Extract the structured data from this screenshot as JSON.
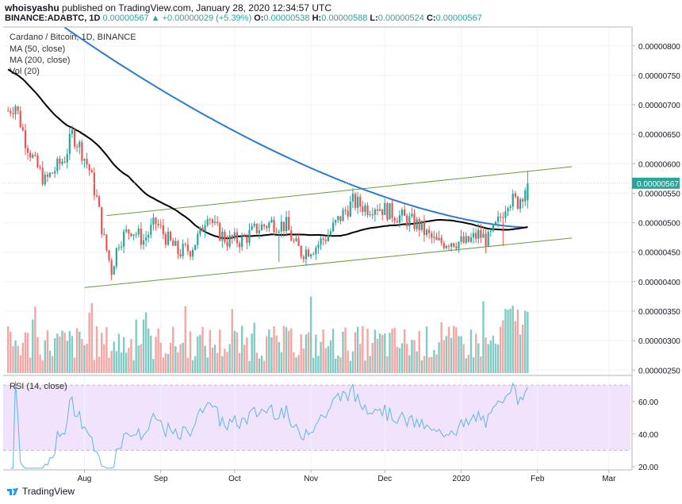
{
  "header": {
    "author": "whoisyashu",
    "published_text": "published on TradingView.com, January 28, 2020 12:34:57 UTC"
  },
  "ohlc": {
    "symbol": "BINANCE:ADABTC, 1D",
    "last": "0.00000567",
    "change": "▲ +0.00000029 (+5.39%)",
    "open_label": "O:",
    "open": "0.00000538",
    "high_label": "H:",
    "high": "0.00000588",
    "low_label": "L:",
    "low": "0.00000524",
    "close_label": "C:",
    "close": "0.00000567"
  },
  "legend": {
    "pair": "Cardano / Bitcoin, 1D, BINANCE",
    "ma50": "MA (50, close)",
    "ma200": "MA (200, close)",
    "vol": "Vol (20)",
    "rsi": "RSI (14, close)"
  },
  "footer": {
    "brand": "TradingView"
  },
  "colors": {
    "up": "#26a69a",
    "down": "#ef5350",
    "vol_up": "#80cbc4",
    "vol_down": "#f4a6a4",
    "ma50": "#000000",
    "ma200": "#2a7bd4",
    "channel": "#6a9b3a",
    "rsi": "#5bb8e6",
    "rsi_band": "#f1e3fb",
    "last_price_bg": "#26a69a"
  },
  "chart_data": [
    {
      "type": "candlestick",
      "title": "Cardano / Bitcoin, 1D, BINANCE",
      "x_tick_labels": [
        "Aug",
        "Sep",
        "Oct",
        "Nov",
        "Dec",
        "2020",
        "Feb",
        "Mar"
      ],
      "y_tick_labels": [
        "0.00000800",
        "0.00000750",
        "0.00000700",
        "0.00000650",
        "0.00000600",
        "0.00000550",
        "0.00000500",
        "0.00000450",
        "0.00000400",
        "0.00000350",
        "0.00000300",
        "0.00000250"
      ],
      "ylim": [
        2.45e-06,
        8.32e-06
      ],
      "last_price_label": "0.00000567",
      "price_path": [
        [
          "2019-07-01",
          690
        ],
        [
          "2019-07-04",
          700
        ],
        [
          "2019-07-08",
          640
        ],
        [
          "2019-07-12",
          600
        ],
        [
          "2019-07-16",
          570
        ],
        [
          "2019-07-20",
          590
        ],
        [
          "2019-07-24",
          610
        ],
        [
          "2019-07-27",
          650
        ],
        [
          "2019-07-30",
          630
        ],
        [
          "2019-08-03",
          590
        ],
        [
          "2019-08-06",
          540
        ],
        [
          "2019-08-09",
          470
        ],
        [
          "2019-08-12",
          420
        ],
        [
          "2019-08-15",
          470
        ],
        [
          "2019-08-20",
          490
        ],
        [
          "2019-08-25",
          470
        ],
        [
          "2019-08-30",
          500
        ],
        [
          "2019-09-04",
          470
        ],
        [
          "2019-09-08",
          450
        ],
        [
          "2019-09-13",
          455
        ],
        [
          "2019-09-17",
          480
        ],
        [
          "2019-09-20",
          520
        ],
        [
          "2019-09-23",
          490
        ],
        [
          "2019-09-28",
          470
        ],
        [
          "2019-10-04",
          470
        ],
        [
          "2019-10-10",
          490
        ],
        [
          "2019-10-16",
          500
        ],
        [
          "2019-10-22",
          495
        ],
        [
          "2019-10-25",
          465
        ],
        [
          "2019-10-28",
          450
        ],
        [
          "2019-11-03",
          460
        ],
        [
          "2019-11-08",
          480
        ],
        [
          "2019-11-14",
          515
        ],
        [
          "2019-11-18",
          535
        ],
        [
          "2019-11-24",
          525
        ],
        [
          "2019-11-27",
          530
        ],
        [
          "2019-12-02",
          520
        ],
        [
          "2019-12-10",
          505
        ],
        [
          "2019-12-15",
          495
        ],
        [
          "2019-12-18",
          480
        ],
        [
          "2019-12-22",
          465
        ],
        [
          "2019-12-28",
          470
        ],
        [
          "2020-01-03",
          465
        ],
        [
          "2020-01-08",
          480
        ],
        [
          "2020-01-12",
          470
        ],
        [
          "2020-01-16",
          500
        ],
        [
          "2020-01-20",
          540
        ],
        [
          "2020-01-24",
          535
        ],
        [
          "2020-01-28",
          567
        ]
      ],
      "series": [
        {
          "name": "MA (50, close)"
        },
        {
          "name": "MA (200, close)"
        }
      ],
      "channel": {
        "upper": [
          [
            "2019-08-10",
            5.12e-06
          ],
          [
            "2020-02-15",
            5.95e-06
          ]
        ],
        "lower": [
          [
            "2019-08-01",
            3.9e-06
          ],
          [
            "2020-02-15",
            4.74e-06
          ]
        ]
      }
    },
    {
      "type": "area",
      "title": "RSI (14, close)",
      "y_tick_labels": [
        "60.00",
        "40.00",
        "20.00"
      ],
      "ylim": [
        18,
        75
      ],
      "band": [
        30,
        70
      ]
    }
  ]
}
